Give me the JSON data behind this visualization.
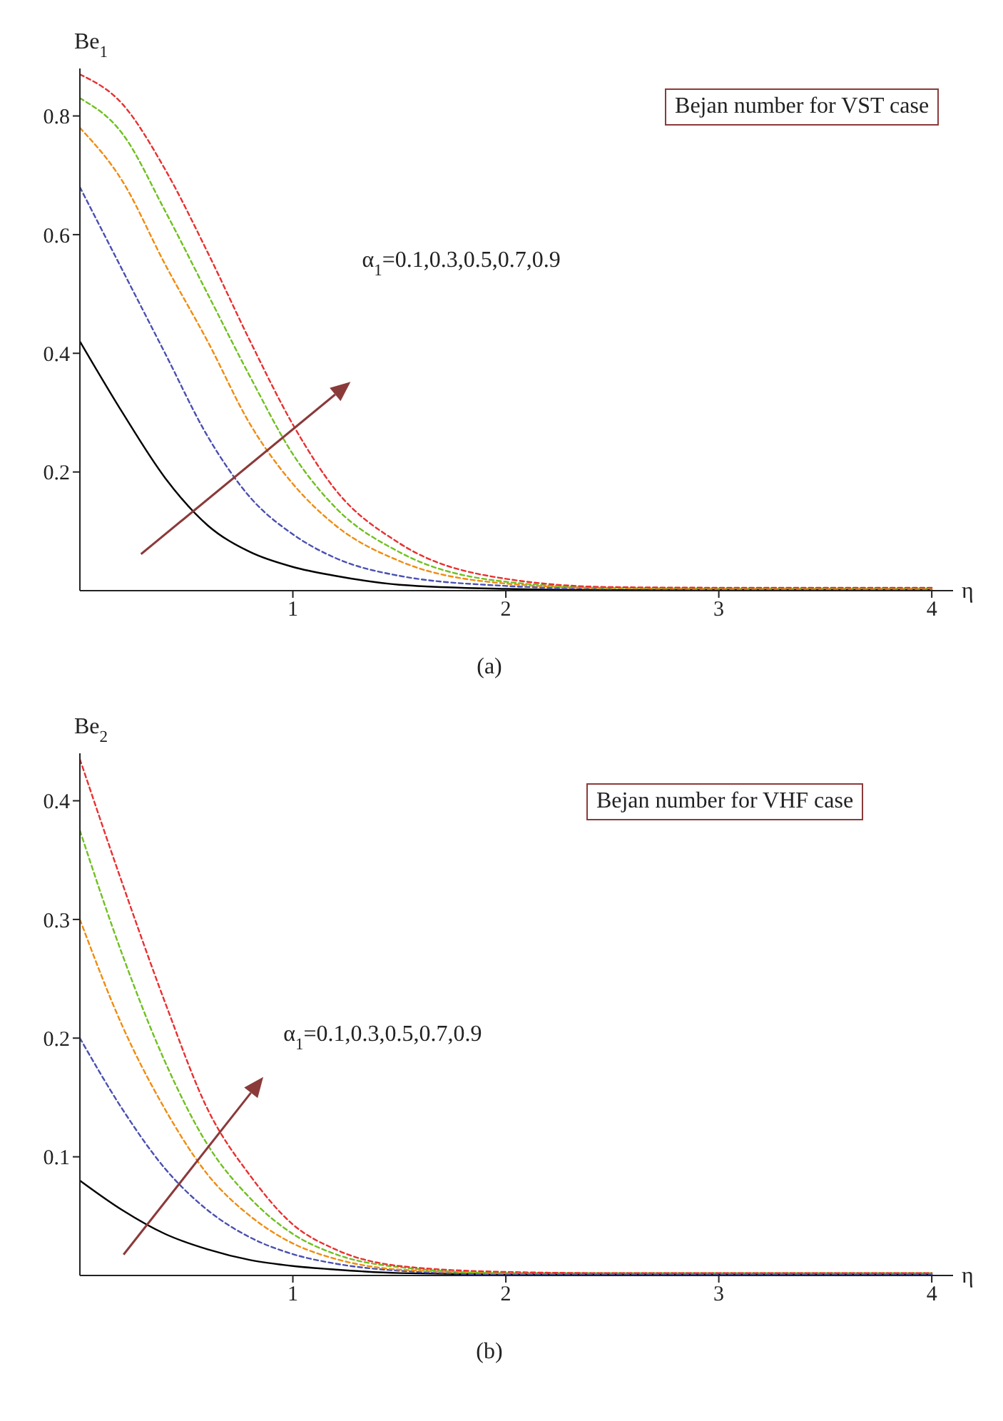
{
  "chart_data": [
    {
      "type": "line",
      "ylabel": "Be$_{1}$",
      "xlabel": "η",
      "xlim": [
        0,
        4.1
      ],
      "xticks": [
        1,
        2,
        3,
        4
      ],
      "ylim": [
        0,
        0.88
      ],
      "yticks": [
        0.2,
        0.4,
        0.6,
        0.8
      ],
      "grid": false,
      "legend": false,
      "marker": "none",
      "annotations": [
        "Bejan number for VST case",
        "α$_{1}$=0.1,0.3,0.5,0.7,0.9",
        "(a)"
      ],
      "x": [
        0,
        0.2,
        0.4,
        0.6,
        0.8,
        1.0,
        1.2,
        1.5,
        2,
        2.5,
        3,
        3.5,
        4
      ],
      "series": [
        {
          "color": "#000000",
          "line_style": "solid",
          "values": [
            0.42,
            0.3,
            0.19,
            0.11,
            0.065,
            0.04,
            0.025,
            0.01,
            0.003,
            0.001,
            0.001,
            0.001,
            0.001
          ]
        },
        {
          "color": "#4a50b0",
          "line_style": "dashed",
          "values": [
            0.68,
            0.54,
            0.4,
            0.26,
            0.157,
            0.095,
            0.055,
            0.025,
            0.008,
            0.003,
            null,
            null,
            null
          ]
        },
        {
          "color": "#f08c10",
          "line_style": "dashed",
          "values": [
            0.78,
            0.69,
            0.55,
            0.42,
            0.28,
            0.18,
            0.11,
            0.05,
            0.012,
            0.004,
            0.003,
            0.003,
            0.003
          ]
        },
        {
          "color": "#70c020",
          "line_style": "dashed",
          "values": [
            0.83,
            0.77,
            0.64,
            0.5,
            0.36,
            0.23,
            0.14,
            0.065,
            0.015,
            0.005,
            0.004,
            0.004,
            0.004
          ]
        },
        {
          "color": "#e83030",
          "line_style": "dashed",
          "values": [
            0.87,
            0.82,
            0.71,
            0.57,
            0.42,
            0.28,
            0.17,
            0.08,
            0.02,
            0.006,
            0.005,
            0.005,
            0.005
          ]
        }
      ]
    },
    {
      "type": "line",
      "ylabel": "Be$_{2}$",
      "xlabel": "η",
      "xlim": [
        0,
        4.1
      ],
      "xticks": [
        1,
        2,
        3,
        4
      ],
      "ylim": [
        0,
        0.44
      ],
      "yticks": [
        0.1,
        0.2,
        0.3,
        0.4
      ],
      "grid": false,
      "legend": false,
      "marker": "none",
      "annotations": [
        "Bejan number for VHF case",
        "α$_{1}$=0.1,0.3,0.5,0.7,0.9",
        "(b)"
      ],
      "x": [
        0,
        0.2,
        0.4,
        0.6,
        0.8,
        1.0,
        1.2,
        1.5,
        2,
        2.5,
        3,
        3.5,
        4
      ],
      "series": [
        {
          "color": "#000000",
          "line_style": "solid",
          "values": [
            0.08,
            0.055,
            0.035,
            0.022,
            0.013,
            0.008,
            0.005,
            0.002,
            0.001,
            0.001,
            0.001,
            0.001,
            0.001
          ]
        },
        {
          "color": "#4a50b0",
          "line_style": "dashed",
          "values": [
            0.2,
            0.14,
            0.09,
            0.055,
            0.032,
            0.018,
            0.01,
            0.004,
            0.001,
            0.001,
            0.001,
            0.001,
            0.001
          ]
        },
        {
          "color": "#f08c10",
          "line_style": "dashed",
          "values": [
            0.3,
            0.21,
            0.14,
            0.085,
            0.05,
            0.027,
            0.014,
            0.005,
            0.002,
            null,
            null,
            null,
            null
          ]
        },
        {
          "color": "#70c020",
          "line_style": "dashed",
          "values": [
            0.375,
            0.27,
            0.18,
            0.11,
            0.065,
            0.035,
            0.018,
            0.007,
            0.002,
            0.002,
            0.002,
            0.002,
            0.002
          ]
        },
        {
          "color": "#e83030",
          "line_style": "dashed",
          "values": [
            0.435,
            0.33,
            0.23,
            0.14,
            0.084,
            0.043,
            0.022,
            0.008,
            0.003,
            0.002,
            0.002,
            0.002,
            0.002
          ]
        }
      ]
    }
  ]
}
